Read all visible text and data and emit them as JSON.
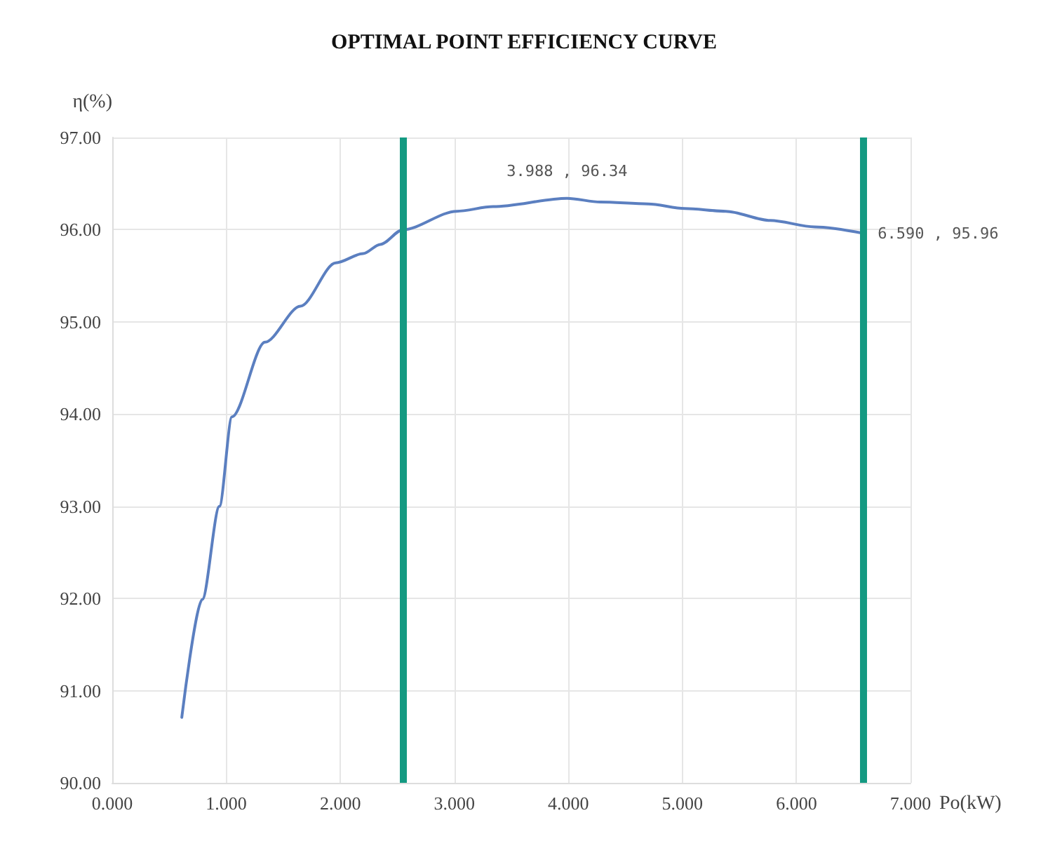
{
  "chart_data": {
    "type": "line",
    "title": "OPTIMAL POINT EFFICIENCY CURVE",
    "xlabel": "Po(kW)",
    "ylabel": "η(%)",
    "x": [
      0.61,
      0.79,
      0.94,
      1.05,
      1.34,
      1.65,
      1.96,
      2.2,
      2.35,
      2.55,
      3.02,
      3.34,
      3.988,
      4.28,
      4.7,
      5.02,
      5.38,
      5.77,
      6.16,
      6.59
    ],
    "series": [
      {
        "color": "#5b7fc0",
        "values": [
          90.71,
          91.99,
          93.0,
          93.97,
          94.78,
          95.17,
          95.64,
          95.74,
          95.84,
          96.0,
          96.2,
          96.25,
          96.34,
          96.3,
          96.28,
          96.23,
          96.2,
          96.1,
          96.03,
          95.96
        ]
      }
    ],
    "xlim": [
      0,
      7
    ],
    "xticks": [
      {
        "value": 0,
        "label": "0.000"
      },
      {
        "value": 1,
        "label": "1.000"
      },
      {
        "value": 2,
        "label": "2.000"
      },
      {
        "value": 3,
        "label": "3.000"
      },
      {
        "value": 4,
        "label": "4.000"
      },
      {
        "value": 5,
        "label": "5.000"
      },
      {
        "value": 6,
        "label": "6.000"
      },
      {
        "value": 7,
        "label": "7.000"
      }
    ],
    "ylim": [
      90,
      97
    ],
    "yticks": [
      {
        "value": 90,
        "label": "90.00"
      },
      {
        "value": 91,
        "label": "91.00"
      },
      {
        "value": 92,
        "label": "92.00"
      },
      {
        "value": 93,
        "label": "93.00"
      },
      {
        "value": 94,
        "label": "94.00"
      },
      {
        "value": 95,
        "label": "95.00"
      },
      {
        "value": 96,
        "label": "96.00"
      },
      {
        "value": 97,
        "label": "97.00"
      }
    ],
    "ref_lines": [
      {
        "axis": "x",
        "value": 2.55,
        "color": "#149a82"
      },
      {
        "axis": "x",
        "value": 6.59,
        "color": "#149a82"
      }
    ],
    "annotations": [
      {
        "text": "3.988 , 96.34",
        "x": 3.988,
        "y": 96.34
      },
      {
        "text": "6.590 , 95.96",
        "x": 6.59,
        "y": 95.96
      }
    ],
    "grid": true,
    "marker": "none",
    "line_style": "solid"
  }
}
